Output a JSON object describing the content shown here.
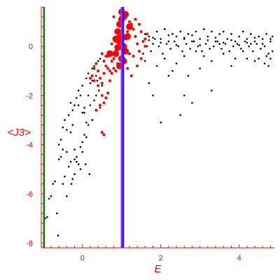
{
  "chart_data": {
    "type": "scatter",
    "title": "",
    "xlabel": "E",
    "ylabel": "<J3>",
    "xlim": [
      -1.05,
      4.9
    ],
    "ylim": [
      -8.2,
      1.6
    ],
    "x_ticks": [
      0,
      2,
      4
    ],
    "y_ticks": [
      0,
      -2,
      -4,
      -6,
      -8
    ],
    "grid": false,
    "legend": "none",
    "colors": {
      "axis": "#ff0000",
      "black_points": "#000000",
      "red_points": "#ff0000",
      "green_line": "#007a00",
      "purple_line": "#9b30ff",
      "blue_line": "#1a1aff"
    },
    "vertical_lines": [
      {
        "x": -0.98,
        "color": "#007a00"
      },
      {
        "x": 1.0,
        "color": "#9b30ff"
      },
      {
        "x": 1.04,
        "color": "#1a1aff"
      }
    ],
    "series": [
      {
        "color": "#000000",
        "marker_size": 1.3,
        "points": [
          [
            -0.95,
            -7.0
          ],
          [
            -0.9,
            -6.95
          ],
          [
            -0.85,
            -6.2
          ],
          [
            -0.8,
            -6.1
          ],
          [
            -0.75,
            -5.6
          ],
          [
            -0.7,
            -5.5
          ],
          [
            -0.65,
            -6.8
          ],
          [
            -0.62,
            -7.7
          ],
          [
            -0.6,
            -4.6
          ],
          [
            -0.55,
            -4.5
          ],
          [
            -0.5,
            -5.6
          ],
          [
            -0.45,
            -5.3
          ],
          [
            -0.4,
            -6.1
          ],
          [
            -0.35,
            -4.9
          ],
          [
            -0.3,
            -4.7
          ],
          [
            -0.28,
            -5.6
          ],
          [
            -0.6,
            -4.0
          ],
          [
            -0.55,
            -3.8
          ],
          [
            -0.5,
            -3.3
          ],
          [
            -0.45,
            -3.0
          ],
          [
            -0.4,
            -3.4
          ],
          [
            -0.35,
            -2.8
          ],
          [
            -0.3,
            -2.3
          ],
          [
            -0.25,
            -2.6
          ],
          [
            -0.2,
            -2.4
          ],
          [
            -0.15,
            -2.1
          ],
          [
            -0.1,
            -1.8
          ],
          [
            -0.05,
            -2.0
          ],
          [
            0.0,
            -1.6
          ],
          [
            0.05,
            -2.5
          ],
          [
            0.1,
            -1.3
          ],
          [
            0.15,
            -1.1
          ],
          [
            0.2,
            -1.5
          ],
          [
            0.25,
            -0.9
          ],
          [
            0.3,
            -0.8
          ],
          [
            0.35,
            -1.2
          ],
          [
            0.4,
            -0.6
          ],
          [
            0.45,
            -0.5
          ],
          [
            -0.2,
            -4.2
          ],
          [
            -0.15,
            -4.5
          ],
          [
            -0.1,
            -4.8
          ],
          [
            -0.05,
            -4.1
          ],
          [
            0.0,
            -3.9
          ],
          [
            0.05,
            -3.6
          ],
          [
            0.1,
            -3.7
          ],
          [
            0.15,
            -3.2
          ],
          [
            -0.3,
            -3.5
          ],
          [
            -0.25,
            -3.2
          ],
          [
            -0.2,
            -4.6
          ],
          [
            -0.15,
            -4.7
          ],
          [
            0.0,
            -2.7
          ],
          [
            0.05,
            -2.7
          ],
          [
            0.1,
            -3.1
          ],
          [
            0.2,
            -2.4
          ],
          [
            0.25,
            -3.0
          ],
          [
            -0.1,
            -2.4
          ],
          [
            0.18,
            -5.2
          ],
          [
            -0.4,
            -4.3
          ],
          [
            -0.5,
            -4.2
          ],
          [
            -0.2,
            -5.2
          ],
          [
            -0.05,
            -5.0
          ],
          [
            -0.25,
            -5.4
          ],
          [
            0.0,
            -4.3
          ],
          [
            0.08,
            -4.8
          ],
          [
            0.3,
            -2.2
          ],
          [
            0.35,
            -2.0
          ],
          [
            0.25,
            -1.4
          ],
          [
            0.15,
            -2.0
          ],
          [
            0.42,
            -1.8
          ],
          [
            0.45,
            -2.5
          ],
          [
            0.5,
            -1.6
          ],
          [
            0.38,
            -1.4
          ],
          [
            1.6,
            0.5
          ],
          [
            1.7,
            0.4
          ],
          [
            1.8,
            0.1
          ],
          [
            1.9,
            0.6
          ],
          [
            2.0,
            0.3
          ],
          [
            2.1,
            0.7
          ],
          [
            2.2,
            0.2
          ],
          [
            2.3,
            0.5
          ],
          [
            2.4,
            0.4
          ],
          [
            2.5,
            0.6
          ],
          [
            2.6,
            0.3
          ],
          [
            2.7,
            0.5
          ],
          [
            2.8,
            0.2
          ],
          [
            2.9,
            0.6
          ],
          [
            3.0,
            0.3
          ],
          [
            3.1,
            0.7
          ],
          [
            3.2,
            0.4
          ],
          [
            3.3,
            0.6
          ],
          [
            3.4,
            0.2
          ],
          [
            3.5,
            0.5
          ],
          [
            3.6,
            0.6
          ],
          [
            3.7,
            0.3
          ],
          [
            3.8,
            0.5
          ],
          [
            3.9,
            0.2
          ],
          [
            4.0,
            0.4
          ],
          [
            4.1,
            0.6
          ],
          [
            4.2,
            0.3
          ],
          [
            4.3,
            0.5
          ],
          [
            4.4,
            0.2
          ],
          [
            4.5,
            0.4
          ],
          [
            4.6,
            0.3
          ],
          [
            4.7,
            0.5
          ],
          [
            4.8,
            0.2
          ],
          [
            4.85,
            0.4
          ],
          [
            1.65,
            0.0
          ],
          [
            1.75,
            -0.2
          ],
          [
            1.85,
            0.3
          ],
          [
            1.95,
            0.0
          ],
          [
            2.05,
            -0.3
          ],
          [
            2.15,
            0.1
          ],
          [
            2.25,
            -0.1
          ],
          [
            2.35,
            0.2
          ],
          [
            2.45,
            0.0
          ],
          [
            2.55,
            -0.2
          ],
          [
            2.65,
            0.1
          ],
          [
            2.75,
            -0.1
          ],
          [
            2.85,
            0.2
          ],
          [
            2.95,
            0.0
          ],
          [
            3.05,
            -0.2
          ],
          [
            3.15,
            0.1
          ],
          [
            3.25,
            -0.1
          ],
          [
            3.35,
            0.0
          ],
          [
            3.45,
            0.2
          ],
          [
            3.55,
            -0.1
          ],
          [
            3.65,
            0.1
          ],
          [
            3.75,
            -0.2
          ],
          [
            3.85,
            0.0
          ],
          [
            3.95,
            0.1
          ],
          [
            4.05,
            -0.1
          ],
          [
            4.15,
            0.2
          ],
          [
            4.25,
            0.0
          ],
          [
            4.35,
            -0.2
          ],
          [
            4.45,
            0.1
          ],
          [
            4.55,
            -0.1
          ],
          [
            4.65,
            0.0
          ],
          [
            4.75,
            -0.3
          ],
          [
            4.85,
            -0.2
          ],
          [
            1.7,
            0.25
          ],
          [
            1.8,
            0.35
          ],
          [
            2.0,
            0.15
          ],
          [
            2.2,
            0.45
          ],
          [
            2.4,
            0.05
          ],
          [
            2.6,
            0.35
          ],
          [
            2.8,
            0.45
          ],
          [
            3.0,
            0.05
          ],
          [
            3.2,
            0.25
          ],
          [
            3.4,
            0.35
          ],
          [
            3.6,
            0.15
          ],
          [
            3.8,
            0.25
          ],
          [
            4.0,
            0.05
          ],
          [
            4.2,
            0.15
          ],
          [
            4.4,
            0.35
          ],
          [
            4.6,
            0.1
          ],
          [
            4.8,
            0.3
          ],
          [
            2.1,
            -0.5
          ],
          [
            2.4,
            -0.7
          ],
          [
            2.6,
            -0.4
          ],
          [
            3.3,
            -0.6
          ],
          [
            3.6,
            -0.3
          ],
          [
            4.2,
            -0.5
          ],
          [
            4.5,
            -0.5
          ],
          [
            4.65,
            -0.7
          ],
          [
            4.75,
            -0.8
          ],
          [
            3.0,
            -0.9
          ],
          [
            2.2,
            -1.2
          ],
          [
            3.3,
            -1.8
          ],
          [
            2.8,
            -2.3
          ],
          [
            2.5,
            -2.8
          ],
          [
            2.0,
            -3.1
          ],
          [
            1.8,
            -2.0
          ],
          [
            1.7,
            -1.5
          ],
          [
            2.6,
            -2.0
          ],
          [
            1.9,
            -0.8
          ],
          [
            2.3,
            -1.0
          ],
          [
            1.6,
            -0.6
          ],
          [
            1.55,
            -0.3
          ],
          [
            1.55,
            0.2
          ],
          [
            2.7,
            -1.2
          ],
          [
            3.8,
            -0.8
          ],
          [
            4.1,
            -0.2
          ],
          [
            4.3,
            0.1
          ],
          [
            3.1,
            -0.4
          ],
          [
            2.9,
            -0.2
          ],
          [
            3.5,
            0.1
          ],
          [
            3.9,
            -0.5
          ],
          [
            4.4,
            -0.6
          ],
          [
            4.7,
            -0.4
          ],
          [
            4.8,
            -0.5
          ]
        ]
      },
      {
        "color": "#ff0000",
        "marker_size": 2.0,
        "points": [
          [
            0.25,
            -1.2
          ],
          [
            0.3,
            -0.9
          ],
          [
            0.35,
            -0.7
          ],
          [
            0.4,
            -1.0
          ],
          [
            0.45,
            -1.3
          ],
          [
            0.5,
            -1.5
          ],
          [
            0.55,
            -1.1
          ],
          [
            0.6,
            -0.8
          ],
          [
            0.65,
            -0.4
          ],
          [
            0.7,
            -0.3
          ],
          [
            0.75,
            -0.6
          ],
          [
            0.8,
            -0.5
          ],
          [
            0.85,
            -0.2
          ],
          [
            0.9,
            -0.3
          ],
          [
            0.95,
            -0.1
          ],
          [
            1.1,
            0.3
          ],
          [
            1.15,
            0.6
          ],
          [
            1.2,
            0.8
          ],
          [
            1.25,
            0.9
          ],
          [
            1.3,
            0.7
          ],
          [
            1.35,
            0.4
          ],
          [
            1.4,
            0.1
          ],
          [
            1.45,
            -0.2
          ],
          [
            1.5,
            -0.5
          ],
          [
            1.55,
            0.2
          ],
          [
            1.6,
            0.3
          ],
          [
            1.65,
            0.5
          ],
          [
            0.5,
            -2.0
          ],
          [
            0.55,
            -2.3
          ],
          [
            0.45,
            -2.4
          ],
          [
            0.35,
            -2.6
          ],
          [
            0.5,
            -3.5
          ],
          [
            0.55,
            -3.6
          ],
          [
            0.6,
            -2.1
          ],
          [
            0.65,
            -1.9
          ],
          [
            0.7,
            -1.4
          ],
          [
            0.75,
            -1.1
          ],
          [
            0.8,
            -0.9
          ],
          [
            0.85,
            -1.0
          ],
          [
            0.9,
            -0.7
          ],
          [
            0.95,
            -0.5
          ],
          [
            1.1,
            -0.6
          ],
          [
            1.2,
            -0.3
          ],
          [
            1.3,
            -0.4
          ],
          [
            1.4,
            -0.8
          ],
          [
            0.8,
            1.2
          ],
          [
            0.85,
            0.6
          ],
          [
            0.9,
            0.4
          ],
          [
            1.2,
            1.0
          ],
          [
            1.35,
            1.1
          ],
          [
            1.45,
            0.9
          ],
          [
            1.5,
            0.6
          ],
          [
            1.6,
            0.0
          ],
          [
            1.15,
            -0.9
          ],
          [
            1.25,
            -1.2
          ],
          [
            0.6,
            -0.4
          ],
          [
            0.65,
            -0.9
          ],
          [
            0.7,
            -1.0
          ],
          [
            0.4,
            -1.6
          ],
          [
            0.3,
            -1.4
          ],
          [
            0.2,
            -1.3
          ],
          [
            0.55,
            -0.6
          ],
          [
            0.5,
            -0.3
          ],
          [
            0.75,
            0.1
          ],
          [
            0.85,
            0.2
          ]
        ]
      },
      {
        "color": "#ff0000",
        "marker_size": 4.8,
        "points": [
          [
            0.85,
            -0.3
          ],
          [
            0.9,
            -0.05
          ],
          [
            0.95,
            0.2
          ],
          [
            1.0,
            0.4
          ],
          [
            1.05,
            0.0
          ],
          [
            1.1,
            -0.2
          ],
          [
            1.0,
            -0.5
          ],
          [
            0.9,
            0.6
          ],
          [
            0.95,
            0.9
          ],
          [
            1.0,
            1.1
          ],
          [
            1.05,
            1.2
          ],
          [
            1.0,
            1.4
          ],
          [
            1.1,
            1.3
          ],
          [
            1.2,
            0.8
          ],
          [
            0.85,
            0.3
          ],
          [
            1.05,
            -0.6
          ],
          [
            0.95,
            -0.8
          ],
          [
            1.15,
            0.4
          ],
          [
            0.7,
            -0.3
          ]
        ]
      }
    ]
  }
}
